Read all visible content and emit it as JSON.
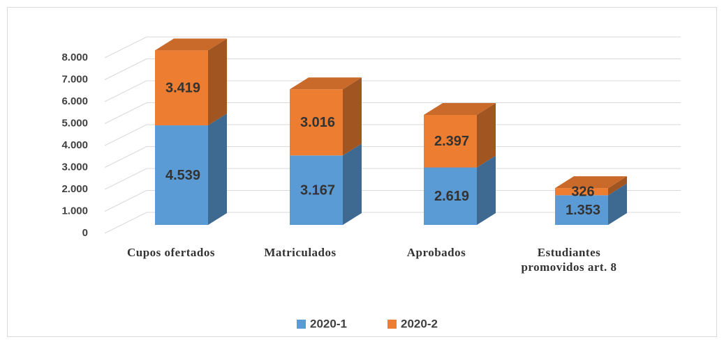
{
  "chart_data": {
    "type": "bar3d_stacked",
    "categories": [
      "Cupos ofertados",
      "Matriculados",
      "Aprobados",
      "Estudiantes promovidos art. 8"
    ],
    "series": [
      {
        "name": "2020-1",
        "color": "#5b9bd5",
        "values": [
          4539,
          3167,
          2619,
          1353
        ],
        "value_labels": [
          "4.539",
          "3.167",
          "2.619",
          "1.353"
        ]
      },
      {
        "name": "2020-2",
        "color": "#ed7d31",
        "values": [
          3419,
          3016,
          2397,
          326
        ],
        "value_labels": [
          "3.419",
          "3.016",
          "2.397",
          "326"
        ]
      }
    ],
    "ylim": [
      0,
      8000
    ],
    "yticks": [
      0,
      {
        "value": 1000,
        "label": "1.000"
      },
      {
        "value": 2000,
        "label": "2.000"
      },
      {
        "value": 3000,
        "label": "3.000"
      },
      {
        "value": 4000,
        "label": "4.000"
      },
      {
        "value": 5000,
        "label": "5.000"
      },
      {
        "value": 6000,
        "label": "6.000"
      },
      {
        "value": 7000,
        "label": "7.000"
      },
      {
        "value": 8000,
        "label": "8.000"
      }
    ],
    "grid": true,
    "legend": "bottom"
  }
}
